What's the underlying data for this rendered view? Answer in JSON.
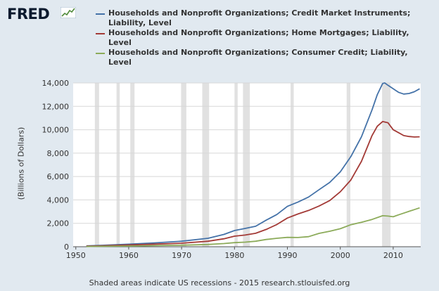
{
  "header": {
    "logo_text": "FRED"
  },
  "footer": {
    "text": "Shaded areas indicate US recessions - 2015 research.stlouisfed.org"
  },
  "colors": {
    "background": "#e1e9f0",
    "plot_bg": "#ffffff",
    "recession": "#e1e1e1",
    "credit": "#4472a8",
    "mortgage": "#a33a36",
    "consumer": "#8cab5a"
  },
  "chart_data": {
    "type": "line",
    "title": "",
    "xlabel": "",
    "ylabel": "(Billions of Dollars)",
    "xlim": [
      1949.5,
      2015.2
    ],
    "ylim": [
      0,
      14000
    ],
    "grid": true,
    "legend_position": "top",
    "x_ticks": [
      "1950",
      "1960",
      "1970",
      "1980",
      "1990",
      "2000",
      "2010"
    ],
    "y_ticks": [
      "0",
      "2,000",
      "4,000",
      "6,000",
      "8,000",
      "10,000",
      "12,000",
      "14,000"
    ],
    "recessions": [
      [
        1953.6,
        1954.4
      ],
      [
        1957.7,
        1958.3
      ],
      [
        1960.3,
        1961.1
      ],
      [
        1969.9,
        1970.9
      ],
      [
        1973.9,
        1975.2
      ],
      [
        1980.0,
        1980.6
      ],
      [
        1981.6,
        1982.9
      ],
      [
        1990.6,
        1991.2
      ],
      [
        2001.2,
        2001.9
      ],
      [
        2007.9,
        2009.5
      ]
    ],
    "series": [
      {
        "name": "Households and Nonprofit Organizations; Credit Market Instruments; Liability, Level",
        "color": "#4472a8",
        "points": [
          [
            1952,
            70
          ],
          [
            1955,
            120
          ],
          [
            1960,
            215
          ],
          [
            1965,
            330
          ],
          [
            1970,
            470
          ],
          [
            1975,
            720
          ],
          [
            1978,
            1050
          ],
          [
            1980,
            1380
          ],
          [
            1982,
            1560
          ],
          [
            1984,
            1750
          ],
          [
            1986,
            2270
          ],
          [
            1988,
            2750
          ],
          [
            1990,
            3450
          ],
          [
            1992,
            3820
          ],
          [
            1994,
            4250
          ],
          [
            1996,
            4880
          ],
          [
            1998,
            5500
          ],
          [
            2000,
            6400
          ],
          [
            2002,
            7700
          ],
          [
            2004,
            9400
          ],
          [
            2006,
            11700
          ],
          [
            2007,
            13000
          ],
          [
            2008,
            13950
          ],
          [
            2008.4,
            14000
          ],
          [
            2009,
            13800
          ],
          [
            2010,
            13500
          ],
          [
            2011,
            13200
          ],
          [
            2012,
            13050
          ],
          [
            2013,
            13100
          ],
          [
            2014,
            13250
          ],
          [
            2015,
            13500
          ]
        ]
      },
      {
        "name": "Households and Nonprofit Organizations; Home Mortgages; Liability, Level",
        "color": "#a33a36",
        "points": [
          [
            1952,
            50
          ],
          [
            1955,
            85
          ],
          [
            1960,
            150
          ],
          [
            1965,
            220
          ],
          [
            1970,
            300
          ],
          [
            1975,
            470
          ],
          [
            1978,
            680
          ],
          [
            1980,
            900
          ],
          [
            1982,
            1000
          ],
          [
            1984,
            1150
          ],
          [
            1986,
            1480
          ],
          [
            1988,
            1900
          ],
          [
            1990,
            2450
          ],
          [
            1992,
            2800
          ],
          [
            1994,
            3100
          ],
          [
            1996,
            3480
          ],
          [
            1998,
            3950
          ],
          [
            2000,
            4700
          ],
          [
            2002,
            5700
          ],
          [
            2004,
            7300
          ],
          [
            2006,
            9500
          ],
          [
            2007,
            10300
          ],
          [
            2008,
            10700
          ],
          [
            2009,
            10600
          ],
          [
            2010,
            10000
          ],
          [
            2011,
            9750
          ],
          [
            2012,
            9500
          ],
          [
            2013,
            9420
          ],
          [
            2014,
            9380
          ],
          [
            2015,
            9400
          ]
        ]
      },
      {
        "name": "Households and Nonprofit Organizations; Consumer Credit; Liability, Level",
        "color": "#8cab5a",
        "points": [
          [
            1952,
            20
          ],
          [
            1955,
            35
          ],
          [
            1960,
            60
          ],
          [
            1965,
            95
          ],
          [
            1970,
            135
          ],
          [
            1975,
            190
          ],
          [
            1978,
            270
          ],
          [
            1980,
            350
          ],
          [
            1982,
            390
          ],
          [
            1984,
            470
          ],
          [
            1986,
            620
          ],
          [
            1988,
            720
          ],
          [
            1990,
            800
          ],
          [
            1992,
            790
          ],
          [
            1994,
            860
          ],
          [
            1996,
            1140
          ],
          [
            1998,
            1320
          ],
          [
            2000,
            1540
          ],
          [
            2002,
            1880
          ],
          [
            2004,
            2090
          ],
          [
            2006,
            2330
          ],
          [
            2008,
            2650
          ],
          [
            2009,
            2620
          ],
          [
            2010,
            2560
          ],
          [
            2011,
            2720
          ],
          [
            2012,
            2870
          ],
          [
            2013,
            3030
          ],
          [
            2014,
            3170
          ],
          [
            2015,
            3320
          ]
        ]
      }
    ]
  }
}
